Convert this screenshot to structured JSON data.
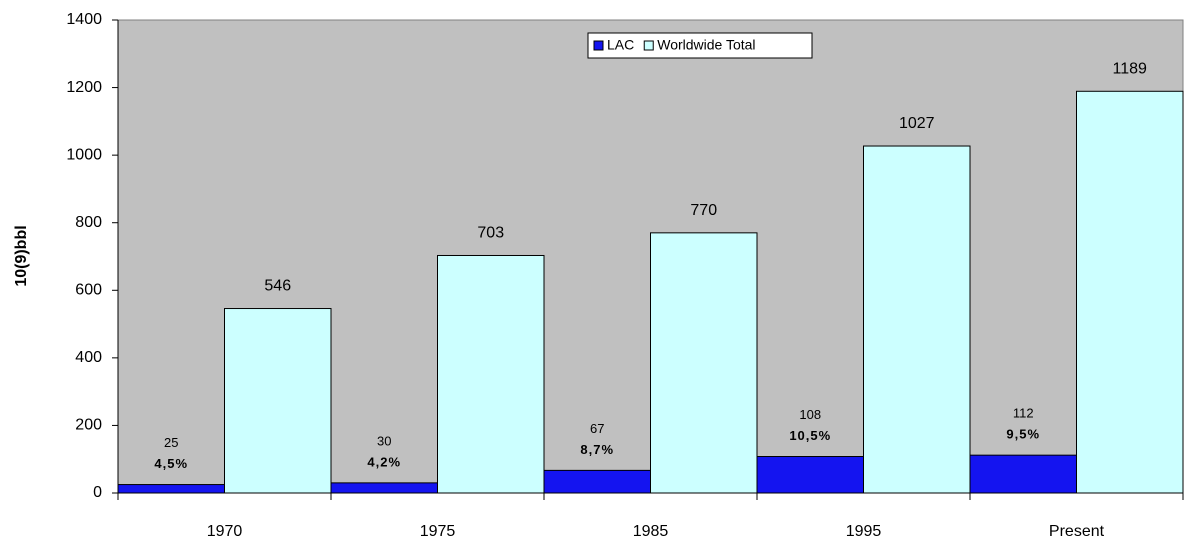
{
  "chart_data": {
    "type": "bar",
    "y_label": "10(9)bbl",
    "categories": [
      "1970",
      "1975",
      "1985",
      "1995",
      "Present"
    ],
    "series": [
      {
        "name": "LAC",
        "color": "#1414f0",
        "values": [
          25,
          30,
          67,
          108,
          112
        ]
      },
      {
        "name": "Worldwide Total",
        "color": "#ccffff",
        "values": [
          546,
          703,
          770,
          1027,
          1189
        ]
      }
    ],
    "annotations": [
      "4,5%",
      "4,2%",
      "8,7%",
      "10,5%",
      "9,5%"
    ],
    "ylim": [
      0,
      1400
    ],
    "yticks": [
      0,
      200,
      400,
      600,
      800,
      1000,
      1200,
      1400
    ],
    "legend": "top",
    "plot_background": "#c0c0c0"
  }
}
